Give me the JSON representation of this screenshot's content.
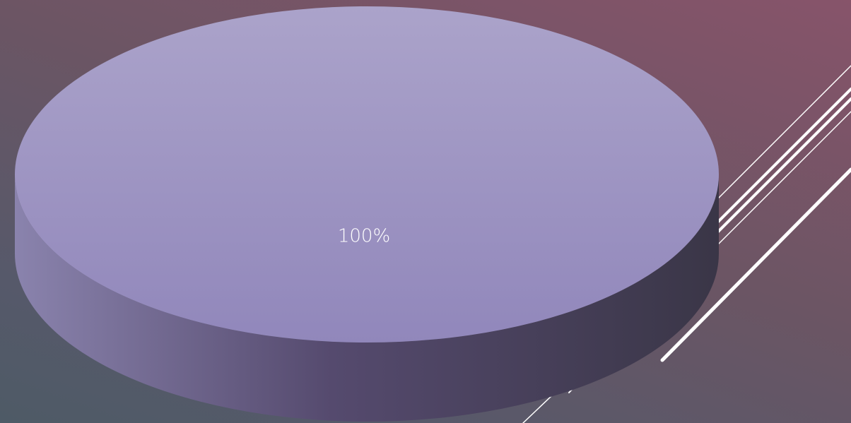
{
  "slide": {
    "background_colors": [
      "#87546a",
      "#6b5564",
      "#56596a",
      "#4e5a66"
    ],
    "decoration_color": "#ffffff"
  },
  "chart_data": {
    "type": "pie",
    "style": "3d",
    "categories": [
      ""
    ],
    "values": [
      100
    ],
    "data_labels": [
      "100%"
    ],
    "colors": {
      "top_light": "#aba3ca",
      "top_dark": "#9187bb",
      "side_light": "#8a83ad",
      "side_dark": "#3a3647"
    },
    "legend": "none",
    "title": ""
  }
}
